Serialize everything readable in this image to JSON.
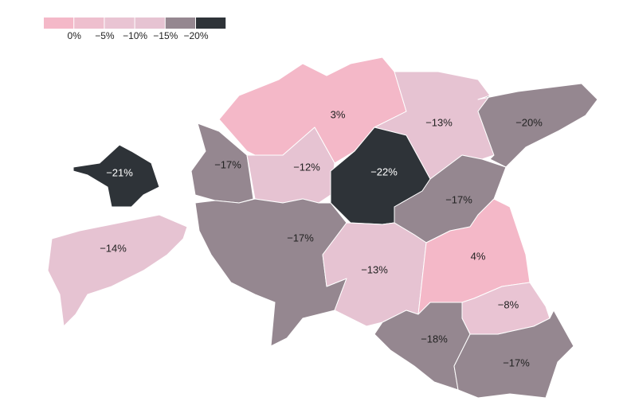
{
  "chart_data": {
    "type": "choropleth",
    "legend_ticks": [
      {
        "value": 0,
        "label": "0%"
      },
      {
        "value": -5,
        "label": "−5%"
      },
      {
        "value": -10,
        "label": "−10%"
      },
      {
        "value": -15,
        "label": "−15%"
      },
      {
        "value": -20,
        "label": "−20%"
      }
    ],
    "legend_colors": [
      "#f4b8c8",
      "#eebfce",
      "#e9c4d3",
      "#e6c3d2",
      "#958790",
      "#2e3338"
    ],
    "values": [
      -21,
      -17,
      3,
      -13,
      -20,
      -12,
      -22,
      -17,
      -14,
      -17,
      -13,
      4,
      -8,
      -18,
      -17
    ],
    "value_labels": [
      "−21%",
      "−17%",
      "3%",
      "−13%",
      "−20%",
      "−12%",
      "−22%",
      "−17%",
      "−14%",
      "−17%",
      "−13%",
      "4%",
      "−8%",
      "−18%",
      "−17%"
    ]
  }
}
